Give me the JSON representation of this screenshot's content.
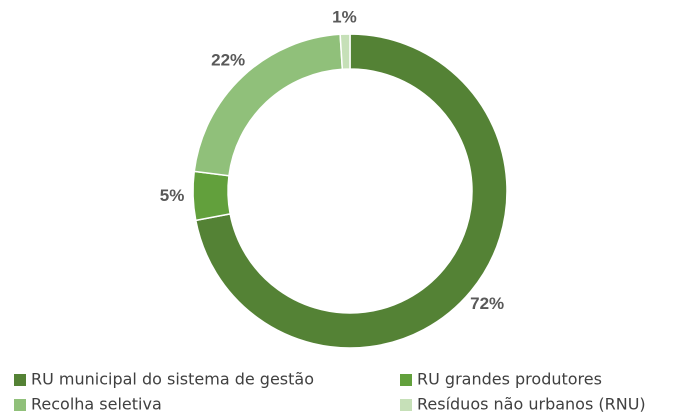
{
  "chart_data": {
    "type": "donut",
    "categories": [
      "RU municipal do sistema de gestão",
      "RU grandes produtores",
      "Recolha seletiva",
      "Resíduos não urbanos (RNU)"
    ],
    "values": [
      72,
      5,
      22,
      1
    ],
    "value_labels": [
      "72%",
      "5%",
      "22%",
      "1%"
    ],
    "colors": [
      "#548235",
      "#62a03c",
      "#90c07a",
      "#c6e0b8"
    ],
    "legend": "bottom"
  }
}
